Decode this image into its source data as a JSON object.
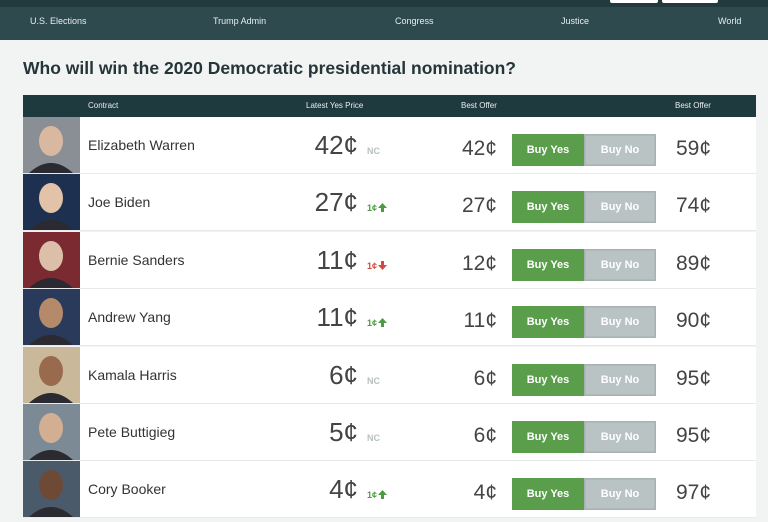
{
  "nav": {
    "items": [
      "U.S. Elections",
      "Trump Admin",
      "Congress",
      "Justice",
      "World"
    ]
  },
  "title": "Who will win the 2020 Democratic presidential nomination?",
  "table": {
    "headers": [
      "Contract",
      "Latest Yes Price",
      "Best Offer",
      "Best Offer"
    ],
    "buttons": {
      "yes": "Buy Yes",
      "no": "Buy No"
    },
    "rows": [
      {
        "name": "Elizabeth Warren",
        "price": "42¢",
        "change": "NC",
        "direction": null,
        "best_yes": "42¢",
        "best_no": "59¢"
      },
      {
        "name": "Joe Biden",
        "price": "27¢",
        "change": "1¢",
        "direction": "up",
        "best_yes": "27¢",
        "best_no": "74¢"
      },
      {
        "name": "Bernie Sanders",
        "price": "11¢",
        "change": "1¢",
        "direction": "down",
        "best_yes": "12¢",
        "best_no": "89¢"
      },
      {
        "name": "Andrew Yang",
        "price": "11¢",
        "change": "1¢",
        "direction": "up",
        "best_yes": "11¢",
        "best_no": "90¢"
      },
      {
        "name": "Kamala Harris",
        "price": "6¢",
        "change": "NC",
        "direction": null,
        "best_yes": "6¢",
        "best_no": "95¢"
      },
      {
        "name": "Pete Buttigieg",
        "price": "5¢",
        "change": "NC",
        "direction": null,
        "best_yes": "6¢",
        "best_no": "95¢"
      },
      {
        "name": "Cory Booker",
        "price": "4¢",
        "change": "1¢",
        "direction": "up",
        "best_yes": "4¢",
        "best_no": "97¢"
      }
    ]
  }
}
